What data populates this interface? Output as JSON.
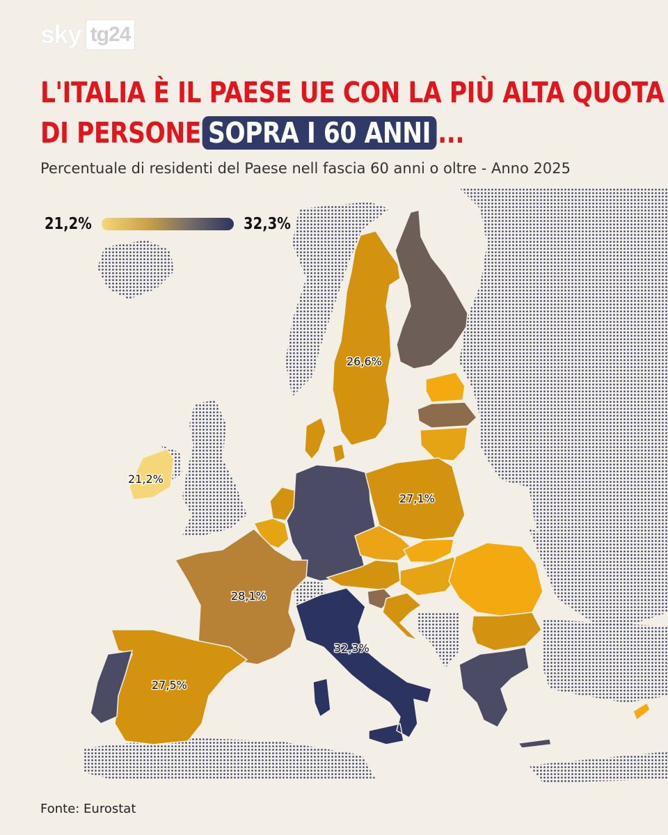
{
  "logo": {
    "part1": "sky",
    "part2": "tg24"
  },
  "title": {
    "line1": "L'ITALIA È IL PAESE UE CON LA PIÙ ALTA QUOTA",
    "line2_pre": "DI PERSONE",
    "highlight": "SOPRA I 60 ANNI",
    "line2_post": "..."
  },
  "subtitle": "Percentuale di residenti del Paese nell fascia 60 anni o oltre - Anno 2025",
  "legend": {
    "min": "21,2%",
    "max": "32,3%",
    "color_min": "#f5d77a",
    "color_max": "#2b3461"
  },
  "colors": {
    "title_red": "#e2141c",
    "highlight_bg": "#2f3a66",
    "non_eu_dots": "#2f3a66"
  },
  "labels": {
    "sweden": "26,6%",
    "ireland": "21,2%",
    "poland": "27,1%",
    "france": "28,1%",
    "italy": "32,3%",
    "spain": "27,5%"
  },
  "source": "Fonte: Eurostat"
}
